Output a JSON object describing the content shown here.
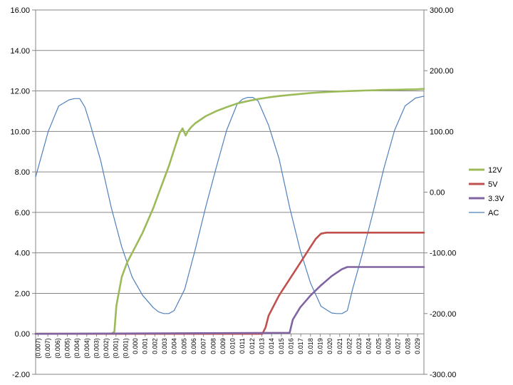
{
  "chart_data": {
    "type": "line",
    "title": "",
    "xlabel": "",
    "ylabel": "",
    "y_left": {
      "range": [
        -2,
        16
      ],
      "ticks": [
        "16.00",
        "14.00",
        "12.00",
        "10.00",
        "8.00",
        "6.00",
        "4.00",
        "2.00",
        "0.00",
        "-2.00"
      ],
      "tick_values": [
        16,
        14,
        12,
        10,
        8,
        6,
        4,
        2,
        0,
        -2
      ]
    },
    "y_right": {
      "range": [
        -300,
        300
      ],
      "ticks": [
        "300.00",
        "200.00",
        "100.00",
        "0.00",
        "-100.00",
        "-200.00",
        "-300.00"
      ],
      "tick_values": [
        300,
        200,
        100,
        0,
        -100,
        -200,
        -300
      ]
    },
    "x_axis": {
      "range": [
        -0.0072,
        0.0298
      ],
      "tick_labels": [
        "(0.007)",
        "(0.007)",
        "(0.006)",
        "(0.005)",
        "(0.004)",
        "(0.004)",
        "(0.003)",
        "(0.002)",
        "(0.001)",
        "(0.001)",
        "0.000",
        "0.001",
        "0.002",
        "0.003",
        "0.004",
        "0.005",
        "0.006",
        "0.007",
        "0.008",
        "0.009",
        "0.010",
        "0.011",
        "0.012",
        "0.013",
        "0.014",
        "0.015",
        "0.016",
        "0.017",
        "0.018",
        "0.019",
        "0.020",
        "0.021",
        "0.022",
        "0.023",
        "0.024",
        "0.025",
        "0.026",
        "0.027",
        "0.028",
        "0.029"
      ]
    },
    "gridlines": "horizontal",
    "legend_position": "right",
    "series": [
      {
        "name": "12V",
        "color": "#9BBB59",
        "axis": "left",
        "x": [
          -0.0072,
          0.0,
          0.0003,
          0.0005,
          0.001,
          0.0015,
          0.002,
          0.0025,
          0.003,
          0.0035,
          0.004,
          0.0045,
          0.005,
          0.0055,
          0.006,
          0.0065,
          0.0068,
          0.0071,
          0.0073,
          0.0076,
          0.008,
          0.009,
          0.01,
          0.011,
          0.012,
          0.013,
          0.014,
          0.015,
          0.016,
          0.017,
          0.018,
          0.019,
          0.02,
          0.021,
          0.022,
          0.023,
          0.024,
          0.025,
          0.026,
          0.027,
          0.028,
          0.029,
          0.0298
        ],
        "y": [
          0.0,
          0.0,
          0.1,
          1.4,
          2.8,
          3.5,
          4.0,
          4.5,
          5.0,
          5.6,
          6.2,
          6.9,
          7.6,
          8.3,
          9.1,
          9.9,
          10.15,
          9.8,
          10.0,
          10.2,
          10.4,
          10.75,
          11.0,
          11.2,
          11.38,
          11.5,
          11.6,
          11.68,
          11.75,
          11.8,
          11.85,
          11.9,
          11.93,
          11.96,
          11.98,
          12.0,
          12.02,
          12.03,
          12.05,
          12.06,
          12.07,
          12.08,
          12.1
        ]
      },
      {
        "name": "5V",
        "color": "#C0504D",
        "axis": "left",
        "x": [
          -0.0072,
          0.0144,
          0.0147,
          0.015,
          0.016,
          0.017,
          0.018,
          0.019,
          0.0195,
          0.02,
          0.0205,
          0.021,
          0.022,
          0.025,
          0.0298
        ],
        "y": [
          0.0,
          0.0,
          0.3,
          0.9,
          1.9,
          2.7,
          3.5,
          4.3,
          4.7,
          4.95,
          5.0,
          5.0,
          5.0,
          5.0,
          5.0
        ]
      },
      {
        "name": "3.3V",
        "color": "#8064A2",
        "axis": "left",
        "x": [
          -0.0072,
          0.017,
          0.0173,
          0.018,
          0.019,
          0.02,
          0.021,
          0.022,
          0.0225,
          0.023,
          0.025,
          0.0298
        ],
        "y": [
          0.0,
          0.05,
          0.7,
          1.3,
          1.9,
          2.4,
          2.85,
          3.2,
          3.3,
          3.3,
          3.3,
          3.3
        ]
      },
      {
        "name": "AC",
        "color": "#4F81BD",
        "axis": "right",
        "x": [
          -0.0072,
          -0.006,
          -0.005,
          -0.004,
          -0.0035,
          -0.003,
          -0.0025,
          -0.002,
          -0.001,
          0.0,
          0.001,
          0.002,
          0.003,
          0.004,
          0.0045,
          0.005,
          0.0055,
          0.006,
          0.007,
          0.008,
          0.009,
          0.01,
          0.011,
          0.012,
          0.0125,
          0.013,
          0.0135,
          0.014,
          0.015,
          0.016,
          0.017,
          0.018,
          0.019,
          0.02,
          0.021,
          0.0215,
          0.022,
          0.0225,
          0.023,
          0.024,
          0.025,
          0.026,
          0.027,
          0.028,
          0.029,
          0.0298
        ],
        "y": [
          25,
          100,
          142,
          152,
          154,
          154,
          140,
          112,
          52,
          -25,
          -90,
          -140,
          -170,
          -190,
          -197,
          -200,
          -200,
          -195,
          -160,
          -95,
          -25,
          40,
          102,
          145,
          153,
          156,
          156,
          150,
          110,
          55,
          -25,
          -95,
          -150,
          -188,
          -199,
          -200,
          -200,
          -195,
          -160,
          -97,
          -30,
          40,
          102,
          142,
          155,
          158
        ]
      }
    ]
  }
}
